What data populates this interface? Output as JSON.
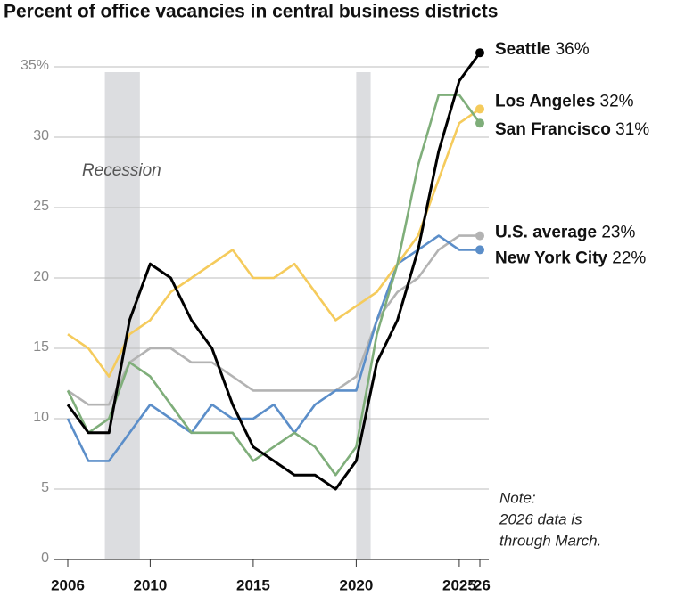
{
  "chart_data": {
    "type": "line",
    "title": "Percent of office vacancies in central business districts",
    "x": [
      2006,
      2007,
      2008,
      2009,
      2010,
      2011,
      2012,
      2013,
      2014,
      2015,
      2016,
      2017,
      2018,
      2019,
      2020,
      2021,
      2022,
      2023,
      2024,
      2025,
      2026
    ],
    "series": [
      {
        "name": "Seattle",
        "color": "#000000",
        "values": [
          11,
          9,
          9,
          17,
          21,
          20,
          17,
          15,
          11,
          8,
          7,
          6,
          6,
          5,
          7,
          14,
          17,
          22,
          29,
          34,
          36
        ],
        "value_labels": [
          null,
          null,
          null,
          null,
          null,
          null,
          null,
          null,
          null,
          null,
          null,
          null,
          null,
          null,
          null,
          null,
          null,
          null,
          null,
          null,
          "36%"
        ]
      },
      {
        "name": "Los Angeles",
        "color": "#f5cb5c",
        "values": [
          16,
          15,
          13,
          16,
          17,
          19,
          20,
          21,
          22,
          20,
          20,
          21,
          19,
          17,
          18,
          19,
          21,
          23,
          27,
          31,
          32
        ],
        "value_labels": [
          null,
          null,
          null,
          null,
          null,
          null,
          null,
          null,
          null,
          null,
          null,
          null,
          null,
          null,
          null,
          null,
          null,
          null,
          null,
          null,
          "32%"
        ]
      },
      {
        "name": "San Francisco",
        "color": "#7fae7a",
        "values": [
          12,
          9,
          10,
          14,
          13,
          11,
          9,
          9,
          9,
          7,
          8,
          9,
          8,
          6,
          8,
          16,
          21,
          28,
          33,
          33,
          31
        ],
        "value_labels": [
          null,
          null,
          null,
          null,
          null,
          null,
          null,
          null,
          null,
          null,
          null,
          null,
          null,
          null,
          null,
          null,
          null,
          null,
          null,
          null,
          "31%"
        ]
      },
      {
        "name": "U.S. average",
        "color": "#b3b3b3",
        "values": [
          12,
          11,
          11,
          14,
          15,
          15,
          14,
          14,
          13,
          12,
          12,
          12,
          12,
          12,
          13,
          17,
          19,
          20,
          22,
          23,
          23
        ],
        "value_labels": [
          null,
          null,
          null,
          null,
          null,
          null,
          null,
          null,
          null,
          null,
          null,
          null,
          null,
          null,
          null,
          null,
          null,
          null,
          null,
          null,
          "23%"
        ]
      },
      {
        "name": "New York City",
        "color": "#5b8ec9",
        "values": [
          10,
          7,
          7,
          9,
          11,
          10,
          9,
          11,
          10,
          10,
          11,
          9,
          11,
          12,
          12,
          17,
          21,
          22,
          23,
          22,
          22
        ],
        "value_labels": [
          null,
          null,
          null,
          null,
          null,
          null,
          null,
          null,
          null,
          null,
          null,
          null,
          null,
          null,
          null,
          null,
          null,
          null,
          null,
          null,
          "22%"
        ]
      }
    ],
    "shaded": [
      {
        "from": 2007.8,
        "to": 2009.5,
        "label": "Recession"
      },
      {
        "from": 2020,
        "to": 2020.7
      }
    ],
    "note": [
      "Note:",
      "2026 data is",
      "through March."
    ],
    "xlim": [
      2006,
      2026
    ],
    "xticks": [
      2006,
      2010,
      2015,
      2020,
      2025,
      {
        "value": 2026,
        "label": "’26"
      }
    ],
    "ylim": [
      0,
      35
    ],
    "yticks": [
      0,
      5,
      10,
      15,
      20,
      25,
      30,
      {
        "value": 35,
        "label": "35%"
      }
    ],
    "grid": true
  }
}
